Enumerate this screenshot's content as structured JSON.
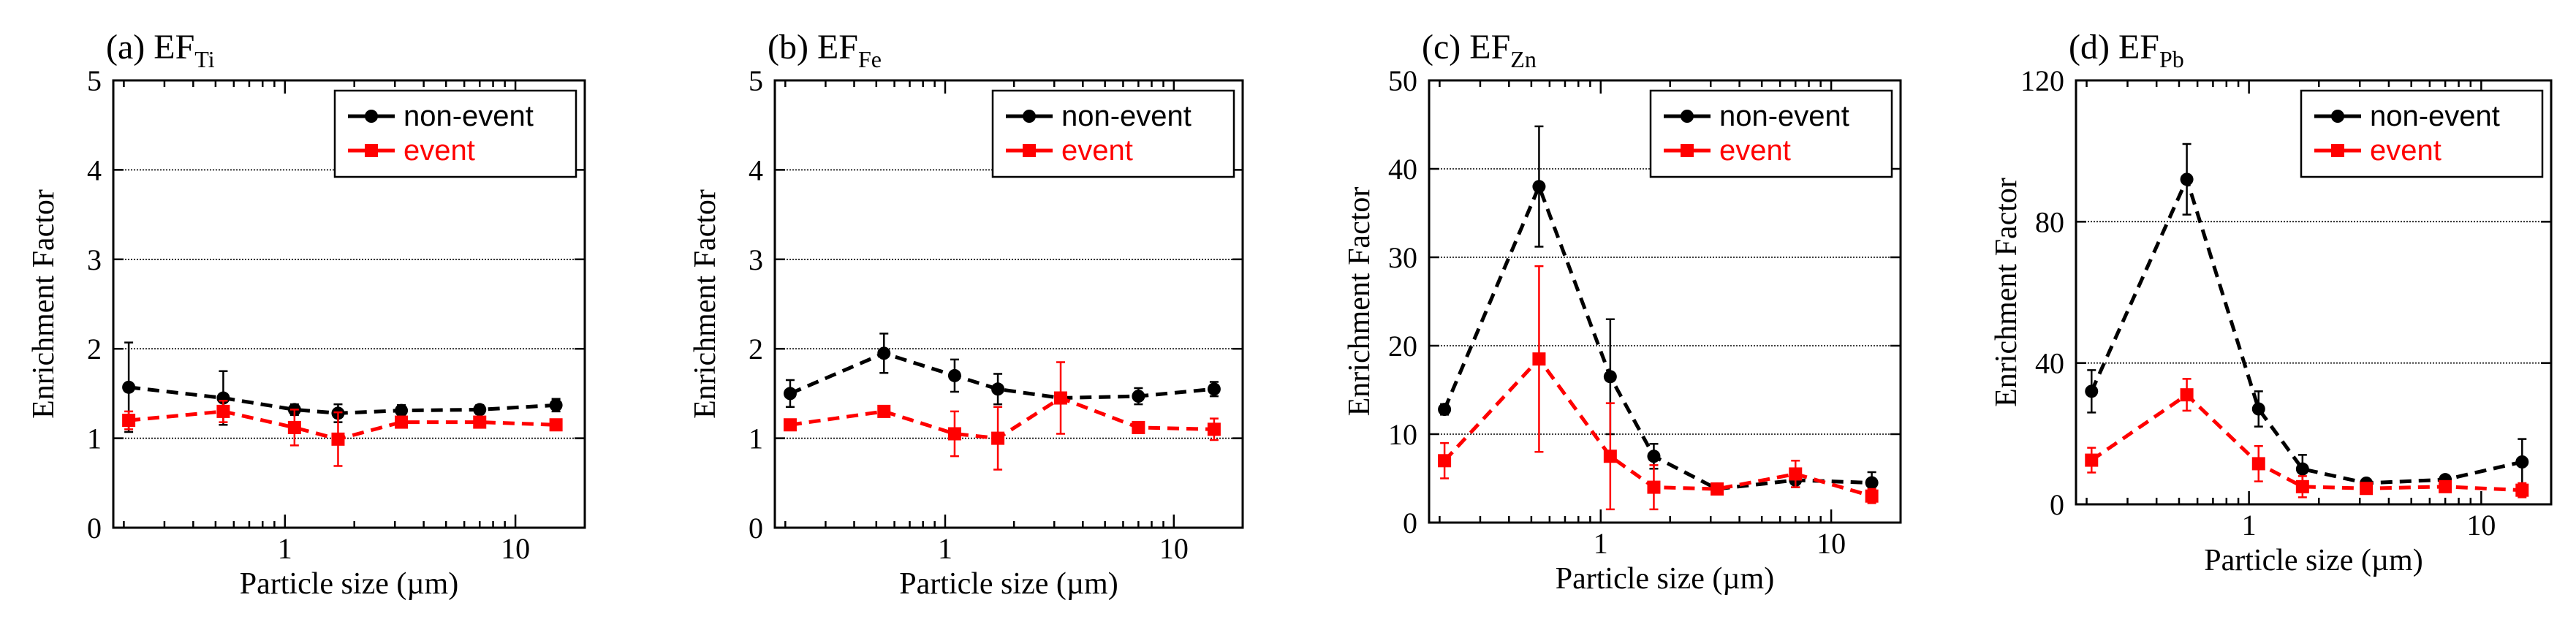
{
  "colors": {
    "non_event": "#000000",
    "event": "#ff0000"
  },
  "chart_data": [
    {
      "type": "line",
      "panel_label": "(a) EF",
      "subscript": "Ti",
      "ylabel": "Enrichment Factor",
      "xlabel": "Particle size (µm)",
      "xscale": "log",
      "xlim": [
        0.18,
        20
      ],
      "ylim": [
        0,
        5
      ],
      "yticks": [
        0,
        1,
        2,
        3,
        4,
        5
      ],
      "xticks": [
        1,
        10
      ],
      "gridlines": [
        1,
        2,
        3,
        4
      ],
      "legend": [
        "non-event",
        "event"
      ],
      "x": [
        0.21,
        0.54,
        1.1,
        1.7,
        3.2,
        7.0,
        15.0
      ],
      "series": [
        {
          "name": "non-event",
          "values": [
            1.57,
            1.45,
            1.32,
            1.28,
            1.31,
            1.32,
            1.37
          ],
          "errors": [
            0.5,
            0.3,
            0.06,
            0.1,
            0.06,
            0.05,
            0.07
          ]
        },
        {
          "name": "event",
          "values": [
            1.2,
            1.3,
            1.12,
            0.99,
            1.18,
            1.18,
            1.15
          ],
          "errors": [
            0.1,
            0.12,
            0.2,
            0.3,
            0.06,
            0.06,
            0.06
          ]
        }
      ]
    },
    {
      "type": "line",
      "panel_label": "(b) EF",
      "subscript": "Fe",
      "ylabel": "Enrichment Factor",
      "xlabel": "Particle size (µm)",
      "xscale": "log",
      "xlim": [
        0.18,
        20
      ],
      "ylim": [
        0,
        5
      ],
      "yticks": [
        0,
        1,
        2,
        3,
        4,
        5
      ],
      "xticks": [
        1,
        10
      ],
      "gridlines": [
        1,
        2,
        3,
        4
      ],
      "legend": [
        "non-event",
        "event"
      ],
      "x": [
        0.21,
        0.54,
        1.1,
        1.7,
        3.2,
        7.0,
        15.0
      ],
      "series": [
        {
          "name": "non-event",
          "values": [
            1.5,
            1.95,
            1.7,
            1.55,
            1.45,
            1.47,
            1.55
          ],
          "errors": [
            0.15,
            0.22,
            0.18,
            0.17,
            0.06,
            0.09,
            0.08
          ]
        },
        {
          "name": "event",
          "values": [
            1.15,
            1.3,
            1.05,
            1.0,
            1.45,
            1.12,
            1.1
          ],
          "errors": [
            0.06,
            0.06,
            0.25,
            0.35,
            0.4,
            0.06,
            0.12
          ]
        }
      ]
    },
    {
      "type": "line",
      "panel_label": "(c) EF",
      "subscript": "Zn",
      "ylabel": "Enrichment Factor",
      "xlabel": "Particle size (µm)",
      "xscale": "log",
      "xlim": [
        0.18,
        20
      ],
      "ylim": [
        0,
        50
      ],
      "yticks": [
        0,
        10,
        20,
        30,
        40,
        50
      ],
      "xticks": [
        1,
        10
      ],
      "gridlines": [
        10,
        20,
        30,
        40
      ],
      "legend": [
        "non-event",
        "event"
      ],
      "x": [
        0.21,
        0.54,
        1.1,
        1.7,
        3.2,
        7.0,
        15.0
      ],
      "series": [
        {
          "name": "non-event",
          "values": [
            12.8,
            38.0,
            16.5,
            7.5,
            3.8,
            4.8,
            4.5
          ],
          "errors": [
            0.6,
            6.8,
            6.5,
            1.4,
            0.5,
            0.8,
            1.2
          ]
        },
        {
          "name": "event",
          "values": [
            7.0,
            18.5,
            7.5,
            4.0,
            3.8,
            5.5,
            3.0
          ],
          "errors": [
            2.0,
            10.5,
            6.0,
            2.5,
            0.5,
            1.5,
            0.8
          ]
        }
      ]
    },
    {
      "type": "line",
      "panel_label": "(d) EF",
      "subscript": "Pb",
      "ylabel": "Enrichment Factor",
      "xlabel": "Particle size (µm)",
      "xscale": "log",
      "xlim": [
        0.18,
        20
      ],
      "ylim": [
        0,
        120
      ],
      "yticks": [
        0,
        40,
        80,
        120
      ],
      "xticks": [
        1,
        10
      ],
      "gridlines": [
        40,
        80
      ],
      "legend": [
        "non-event",
        "event"
      ],
      "x": [
        0.21,
        0.54,
        1.1,
        1.7,
        3.2,
        7.0,
        15.0
      ],
      "series": [
        {
          "name": "non-event",
          "values": [
            32.0,
            92.0,
            27.0,
            10.0,
            6.0,
            7.0,
            12.0
          ],
          "errors": [
            6.0,
            10.0,
            5.0,
            4.0,
            1.0,
            1.0,
            6.5
          ]
        },
        {
          "name": "event",
          "values": [
            12.5,
            31.0,
            11.5,
            5.0,
            4.5,
            5.0,
            4.0
          ],
          "errors": [
            3.5,
            4.5,
            5.0,
            3.0,
            1.0,
            1.5,
            2.0
          ]
        }
      ]
    }
  ]
}
